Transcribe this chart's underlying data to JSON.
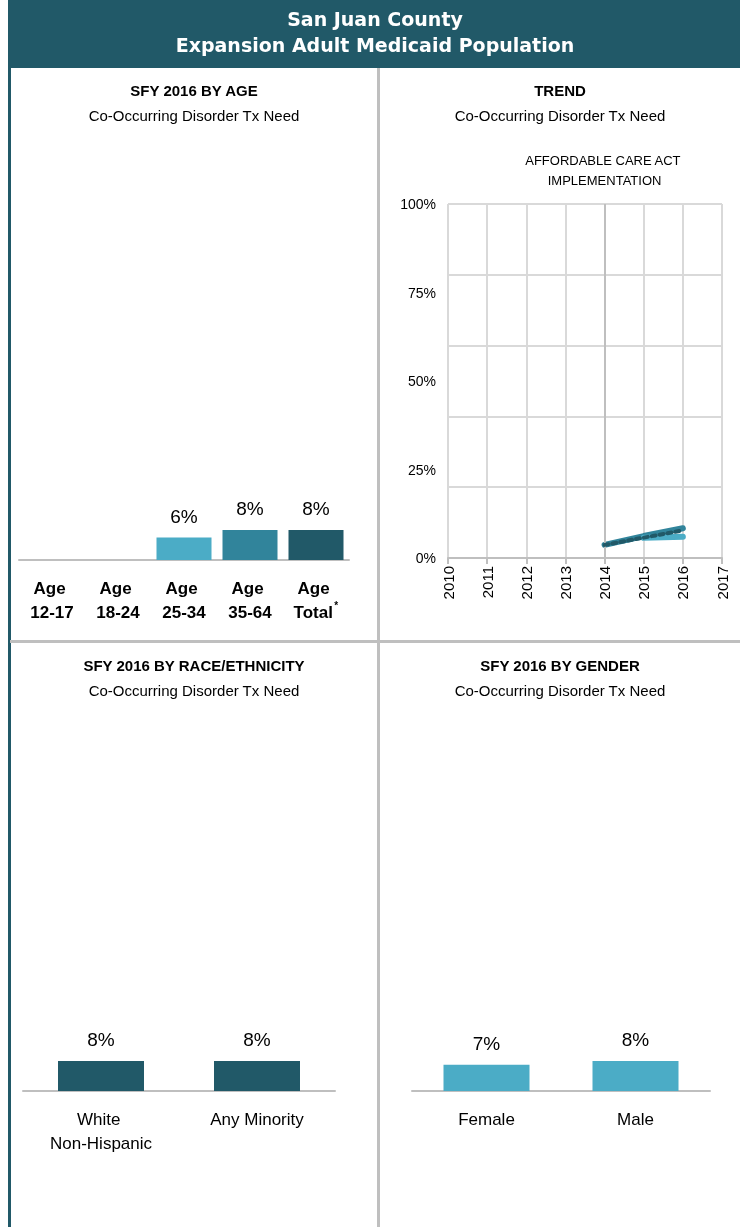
{
  "chart_data": [
    {
      "type": "other",
      "title": "San Juan County",
      "subtitle": "Expansion Adult Medicaid Population"
    },
    {
      "type": "bar",
      "title": "SFY 2016 BY AGE",
      "subtitle": "Co-Occurring Disorder Tx Need",
      "categories": [
        "Age 12-17",
        "Age 18-24",
        "Age 25-34",
        "Age 35-64",
        "Age Total$^{*}$"
      ],
      "values": [
        null,
        null,
        6,
        8,
        8
      ],
      "value_labels": [
        null,
        null,
        "6%",
        "8%",
        "8%"
      ],
      "colors": [
        "#4bacc6",
        "#31849b",
        "#4bacc6",
        "#31849b",
        "#215968"
      ],
      "tick_labels": "x"
    },
    {
      "type": "line",
      "title": "TREND",
      "subtitle": "Co-Occurring Disorder Tx Need",
      "xlim": [
        2010,
        2017
      ],
      "xticks": [
        2010,
        2011,
        2012,
        2013,
        2014,
        2015,
        2016,
        2017
      ],
      "ylim": [
        0,
        100
      ],
      "yticks": [
        {
          "value": 0,
          "label": "0%"
        },
        {
          "value": 25,
          "label": "25%"
        },
        {
          "value": 50,
          "label": "50%"
        },
        {
          "value": 75,
          "label": "75%"
        },
        {
          "value": 100,
          "label": "100%"
        }
      ],
      "grid": true,
      "marker": "none",
      "series": [
        {
          "color": "#31849b",
          "x": [
            2014,
            2015,
            2016
          ],
          "values": [
            3.7,
            6.2,
            8.4
          ],
          "line_style": "solid"
        },
        {
          "color": "#4bacc6",
          "x": [
            2015,
            2016
          ],
          "values": [
            5.7,
            6.0
          ],
          "line_style": "solid"
        },
        {
          "color": "#215968",
          "x": [
            2014,
            2016
          ],
          "values": [
            3.7,
            7.8
          ],
          "line_style": "dotted"
        }
      ],
      "ref_lines": [
        {
          "axis": "x",
          "value": 2014,
          "label": "AFFORDABLE CARE ACT IMPLEMENTATION",
          "color": "#bfbfbf"
        }
      ]
    },
    {
      "type": "bar",
      "title": "SFY 2016 BY RACE/ETHNICITY",
      "subtitle": "Co-Occurring Disorder Tx Need",
      "categories": [
        "White Non-Hispanic",
        "Any Minority"
      ],
      "values": [
        8,
        8
      ],
      "value_labels": [
        "8%",
        "8%"
      ],
      "color": "#215968",
      "tick_labels": "x"
    },
    {
      "type": "bar",
      "title": "SFY 2016 BY GENDER",
      "subtitle": "Co-Occurring Disorder Tx Need",
      "categories": [
        "Female",
        "Male"
      ],
      "values": [
        7,
        8
      ],
      "value_labels": [
        "7%",
        "8%"
      ],
      "color": "#4bacc6",
      "tick_labels": "x"
    }
  ]
}
